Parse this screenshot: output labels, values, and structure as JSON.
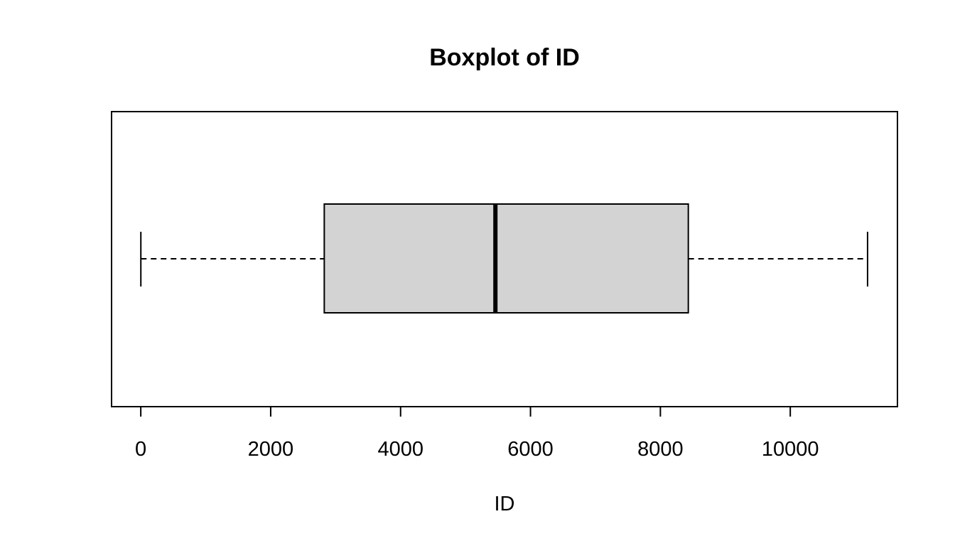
{
  "chart_data": {
    "type": "boxplot",
    "orientation": "horizontal",
    "title": "Boxplot of ID",
    "xlabel": "ID",
    "ylabel": "",
    "xlim": [
      -450,
      11650
    ],
    "ticks": [
      0,
      2000,
      4000,
      6000,
      8000,
      10000
    ],
    "tick_labels": [
      "0",
      "2000",
      "4000",
      "6000",
      "8000",
      "10000"
    ],
    "stats": {
      "min": 1,
      "q1": 2825,
      "median": 5460,
      "q3": 8430,
      "max": 11190
    },
    "box_fill": "#d3d3d3",
    "stroke": "#000000"
  }
}
